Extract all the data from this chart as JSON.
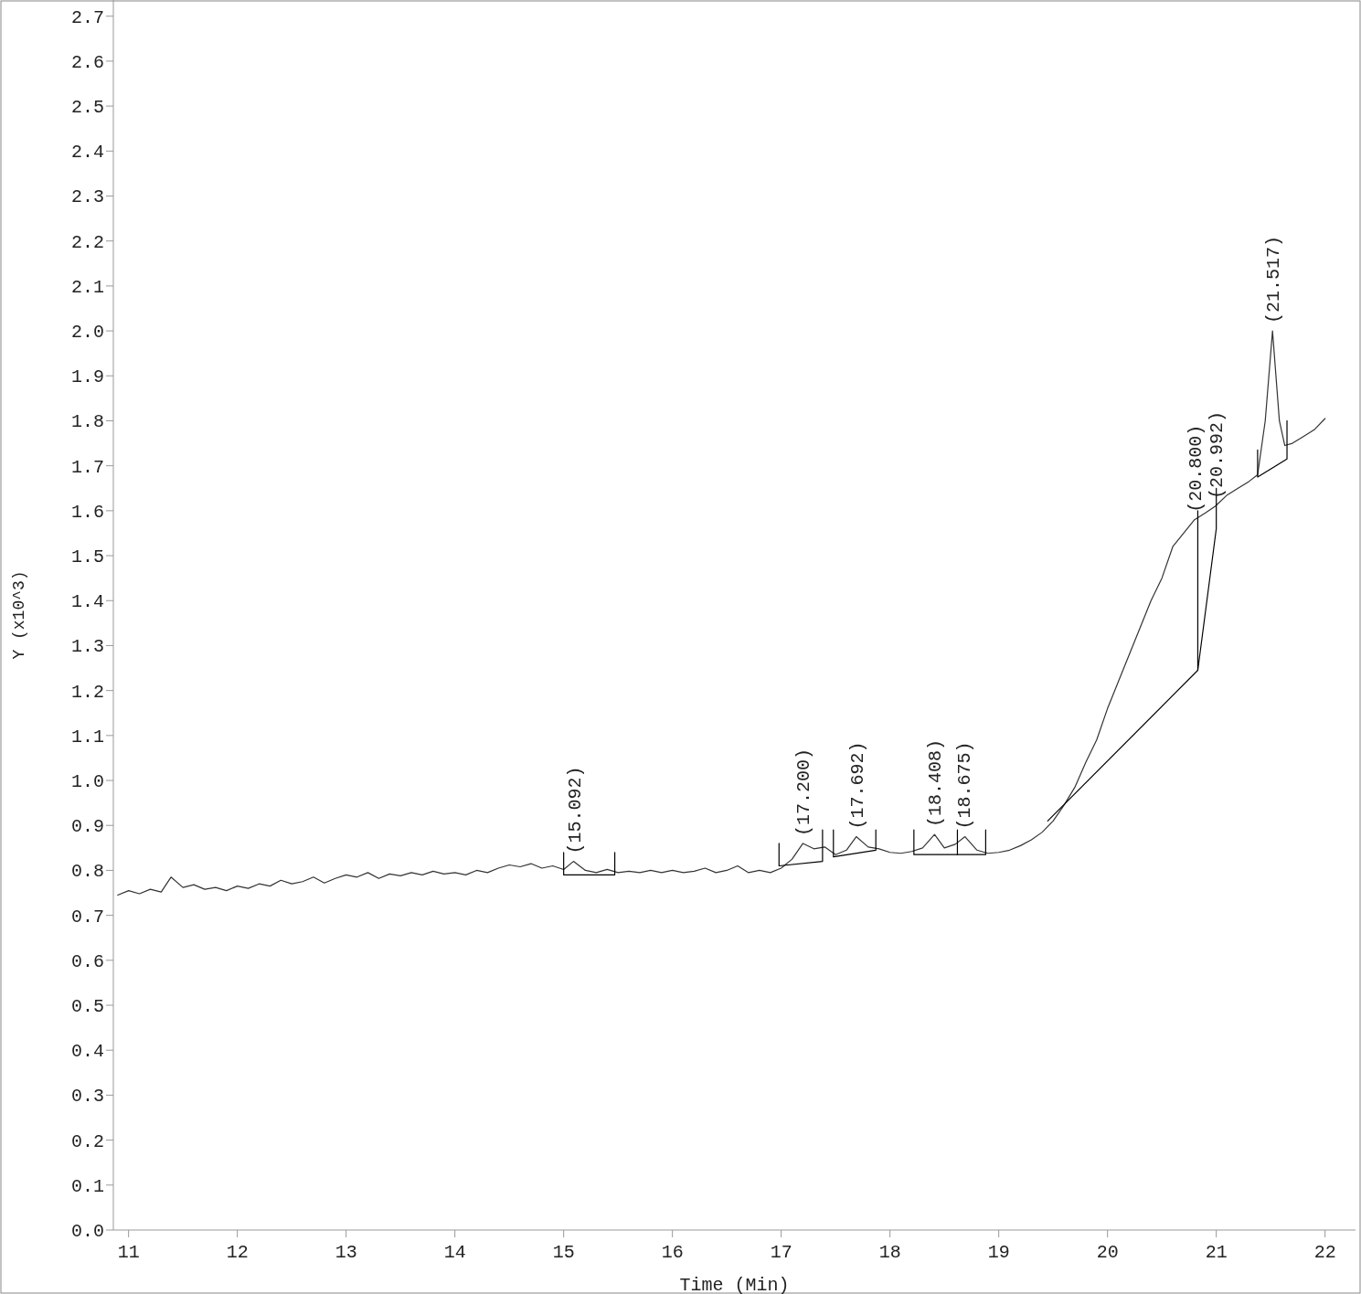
{
  "chart_data": {
    "type": "line",
    "xlabel": "Time (Min)",
    "ylabel": "Y (x10^3)",
    "xlim": [
      10.86,
      22.28
    ],
    "ylim": [
      0,
      2.736
    ],
    "xticks": [
      11,
      12,
      13,
      14,
      15,
      16,
      17,
      18,
      19,
      20,
      21,
      22
    ],
    "yticks": [
      {
        "value": 0,
        "label": "0.0"
      },
      {
        "value": 0.1,
        "label": "0.1"
      },
      {
        "value": 0.2,
        "label": "0.2"
      },
      {
        "value": 0.3,
        "label": "0.3"
      },
      {
        "value": 0.4,
        "label": "0.4"
      },
      {
        "value": 0.5,
        "label": "0.5"
      },
      {
        "value": 0.6,
        "label": "0.6"
      },
      {
        "value": 0.7,
        "label": "0.7"
      },
      {
        "value": 0.8,
        "label": "0.8"
      },
      {
        "value": 0.9,
        "label": "0.9"
      },
      {
        "value": 1,
        "label": "1.0"
      },
      {
        "value": 1.1,
        "label": "1.1"
      },
      {
        "value": 1.2,
        "label": "1.2"
      },
      {
        "value": 1.3,
        "label": "1.3"
      },
      {
        "value": 1.4,
        "label": "1.4"
      },
      {
        "value": 1.5,
        "label": "1.5"
      },
      {
        "value": 1.6,
        "label": "1.6"
      },
      {
        "value": 1.7,
        "label": "1.7"
      },
      {
        "value": 1.8,
        "label": "1.8"
      },
      {
        "value": 1.9,
        "label": "1.9"
      },
      {
        "value": 2,
        "label": "2.0"
      },
      {
        "value": 2.1,
        "label": "2.1"
      },
      {
        "value": 2.2,
        "label": "2.2"
      },
      {
        "value": 2.3,
        "label": "2.3"
      },
      {
        "value": 2.4,
        "label": "2.4"
      },
      {
        "value": 2.5,
        "label": "2.5"
      },
      {
        "value": 2.6,
        "label": "2.6"
      },
      {
        "value": 2.7,
        "label": "2.7"
      }
    ],
    "grid": false,
    "marker": "none",
    "line_style": "solid",
    "series": [
      {
        "color": "#333333",
        "x": [
          10.9,
          11.0,
          11.1,
          11.2,
          11.3,
          11.39,
          11.5,
          11.6,
          11.7,
          11.8,
          11.9,
          12.0,
          12.1,
          12.2,
          12.3,
          12.4,
          12.5,
          12.6,
          12.7,
          12.8,
          12.9,
          13.0,
          13.1,
          13.2,
          13.3,
          13.4,
          13.5,
          13.6,
          13.7,
          13.8,
          13.9,
          14.0,
          14.1,
          14.2,
          14.3,
          14.4,
          14.5,
          14.6,
          14.7,
          14.8,
          14.9,
          15.0,
          15.09,
          15.2,
          15.3,
          15.4,
          15.5,
          15.6,
          15.7,
          15.8,
          15.9,
          16.0,
          16.1,
          16.2,
          16.3,
          16.4,
          16.5,
          16.6,
          16.7,
          16.8,
          16.9,
          17.0,
          17.1,
          17.2,
          17.3,
          17.4,
          17.5,
          17.6,
          17.69,
          17.8,
          17.9,
          18.0,
          18.1,
          18.2,
          18.3,
          18.41,
          18.5,
          18.6,
          18.69,
          18.8,
          18.9,
          19.0,
          19.1,
          19.2,
          19.3,
          19.4,
          19.5,
          19.6,
          19.7,
          19.8,
          19.9,
          20.0,
          20.1,
          20.2,
          20.3,
          20.4,
          20.5,
          20.6,
          20.7,
          20.8,
          20.9,
          20.99,
          21.1,
          21.2,
          21.3,
          21.38,
          21.45,
          21.517,
          21.58,
          21.63,
          21.7,
          21.8,
          21.9,
          22.0
        ],
        "values": [
          0.745,
          0.755,
          0.748,
          0.758,
          0.752,
          0.785,
          0.762,
          0.768,
          0.758,
          0.762,
          0.755,
          0.765,
          0.76,
          0.77,
          0.765,
          0.778,
          0.77,
          0.775,
          0.785,
          0.772,
          0.782,
          0.79,
          0.785,
          0.795,
          0.782,
          0.792,
          0.788,
          0.795,
          0.79,
          0.798,
          0.792,
          0.795,
          0.79,
          0.8,
          0.795,
          0.805,
          0.812,
          0.808,
          0.815,
          0.805,
          0.81,
          0.802,
          0.82,
          0.8,
          0.795,
          0.802,
          0.795,
          0.798,
          0.795,
          0.8,
          0.795,
          0.8,
          0.795,
          0.798,
          0.805,
          0.795,
          0.8,
          0.81,
          0.795,
          0.8,
          0.795,
          0.805,
          0.825,
          0.86,
          0.848,
          0.852,
          0.835,
          0.845,
          0.875,
          0.852,
          0.848,
          0.84,
          0.838,
          0.842,
          0.85,
          0.88,
          0.85,
          0.858,
          0.875,
          0.845,
          0.838,
          0.84,
          0.845,
          0.855,
          0.868,
          0.885,
          0.91,
          0.945,
          0.985,
          1.04,
          1.09,
          1.16,
          1.22,
          1.28,
          1.34,
          1.4,
          1.45,
          1.52,
          1.55,
          1.58,
          1.595,
          1.61,
          1.635,
          1.65,
          1.665,
          1.68,
          1.8,
          2.0,
          1.8,
          1.745,
          1.75,
          1.765,
          1.78,
          1.805
        ]
      },
      {
        "color": "#000000",
        "x": [
          15.0,
          15.0,
          15.47,
          15.47
        ],
        "values": [
          0.84,
          0.79,
          0.79,
          0.84
        ]
      },
      {
        "color": "#000000",
        "x": [
          16.98,
          16.98,
          17.38,
          17.38
        ],
        "values": [
          0.86,
          0.81,
          0.82,
          0.89
        ]
      },
      {
        "color": "#000000",
        "x": [
          17.48,
          17.48,
          17.87,
          17.87
        ],
        "values": [
          0.89,
          0.83,
          0.845,
          0.89
        ]
      },
      {
        "color": "#000000",
        "x": [
          18.22,
          18.22,
          18.62,
          18.62
        ],
        "values": [
          0.89,
          0.835,
          0.835,
          0.89
        ]
      },
      {
        "color": "#000000",
        "x": [
          18.62,
          18.88,
          18.88
        ],
        "values": [
          0.835,
          0.835,
          0.89
        ]
      },
      {
        "color": "#000000",
        "x": [
          19.45,
          20.83,
          20.83
        ],
        "values": [
          0.91,
          1.245,
          1.6
        ]
      },
      {
        "color": "#000000",
        "x": [
          20.83,
          21.0,
          21.0
        ],
        "values": [
          1.245,
          1.56,
          1.65
        ]
      },
      {
        "color": "#000000",
        "x": [
          21.38,
          21.38,
          21.65,
          21.65
        ],
        "values": [
          1.735,
          1.675,
          1.715,
          1.8
        ]
      }
    ],
    "annotations": [
      {
        "text": "(15.092)",
        "x": 15.092,
        "y": 0.82
      },
      {
        "text": "(17.200)",
        "x": 17.2,
        "y": 0.86
      },
      {
        "text": "(17.692)",
        "x": 17.692,
        "y": 0.875
      },
      {
        "text": "(18.408)",
        "x": 18.408,
        "y": 0.88
      },
      {
        "text": "(18.675)",
        "x": 18.675,
        "y": 0.875
      },
      {
        "text": "(20.800)",
        "x": 20.8,
        "y": 1.58
      },
      {
        "text": "(20.992)",
        "x": 20.992,
        "y": 1.61
      },
      {
        "text": "(21.517)",
        "x": 21.517,
        "y": 2.0
      }
    ]
  }
}
